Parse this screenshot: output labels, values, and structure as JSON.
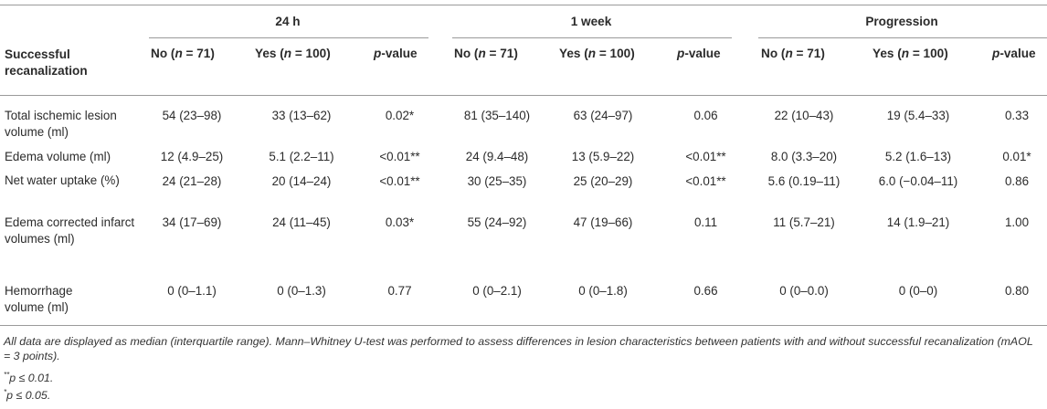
{
  "table": {
    "groups": [
      "24 h",
      "1 week",
      "Progression"
    ],
    "row_header_label": "Successful recanalization",
    "subheaders": {
      "no_prefix": "No (",
      "yes_prefix": "Yes (",
      "n_var": "n",
      "no_eq": " = 71)",
      "yes_eq": " = 100)",
      "p_var": "p",
      "p_suffix": "-value"
    },
    "rows": [
      {
        "label": "Total ischemic lesion volume (ml)",
        "cells": [
          "54 (23–98)",
          "33 (13–62)",
          "0.02*",
          "81 (35–140)",
          "63 (24–97)",
          "0.06",
          "22 (10–43)",
          "19 (5.4–33)",
          "0.33"
        ]
      },
      {
        "label": "Edema volume (ml)",
        "cells": [
          "12 (4.9–25)",
          "5.1 (2.2–11)",
          "<0.01**",
          "24 (9.4–48)",
          "13 (5.9–22)",
          "<0.01**",
          "8.0 (3.3–20)",
          "5.2 (1.6–13)",
          "0.01*"
        ]
      },
      {
        "label": "Net water uptake (%)",
        "cells": [
          "24 (21–28)",
          "20 (14–24)",
          "<0.01**",
          "30 (25–35)",
          "25 (20–29)",
          "<0.01**",
          "5.6 (0.19–11)",
          "6.0 (−0.04–11)",
          "0.86"
        ]
      },
      {
        "label": "Edema corrected infarct volumes (ml)",
        "cells": [
          "34 (17–69)",
          "24 (11–45)",
          "0.03*",
          "55 (24–92)",
          "47 (19–66)",
          "0.11",
          "11 (5.7–21)",
          "14 (1.9–21)",
          "1.00"
        ]
      },
      {
        "label": "Hemorrhage volume (ml)",
        "cells": [
          "0 (0–1.1)",
          "0 (0–1.3)",
          "0.77",
          "0 (0–2.1)",
          "0 (0–1.8)",
          "0.66",
          "0 (0–0.0)",
          "0 (0–0)",
          "0.80"
        ]
      }
    ]
  },
  "footnotes": {
    "main": "All data are displayed as median (interquartile range). Mann–Whitney U-test was performed to assess differences in lesion characteristics between patients with and without successful recanalization (mAOL = 3 points).",
    "double_star_mark": "**",
    "double_star_text": "p ≤ 0.01.",
    "single_star_mark": "*",
    "single_star_text": "p ≤ 0.05."
  }
}
